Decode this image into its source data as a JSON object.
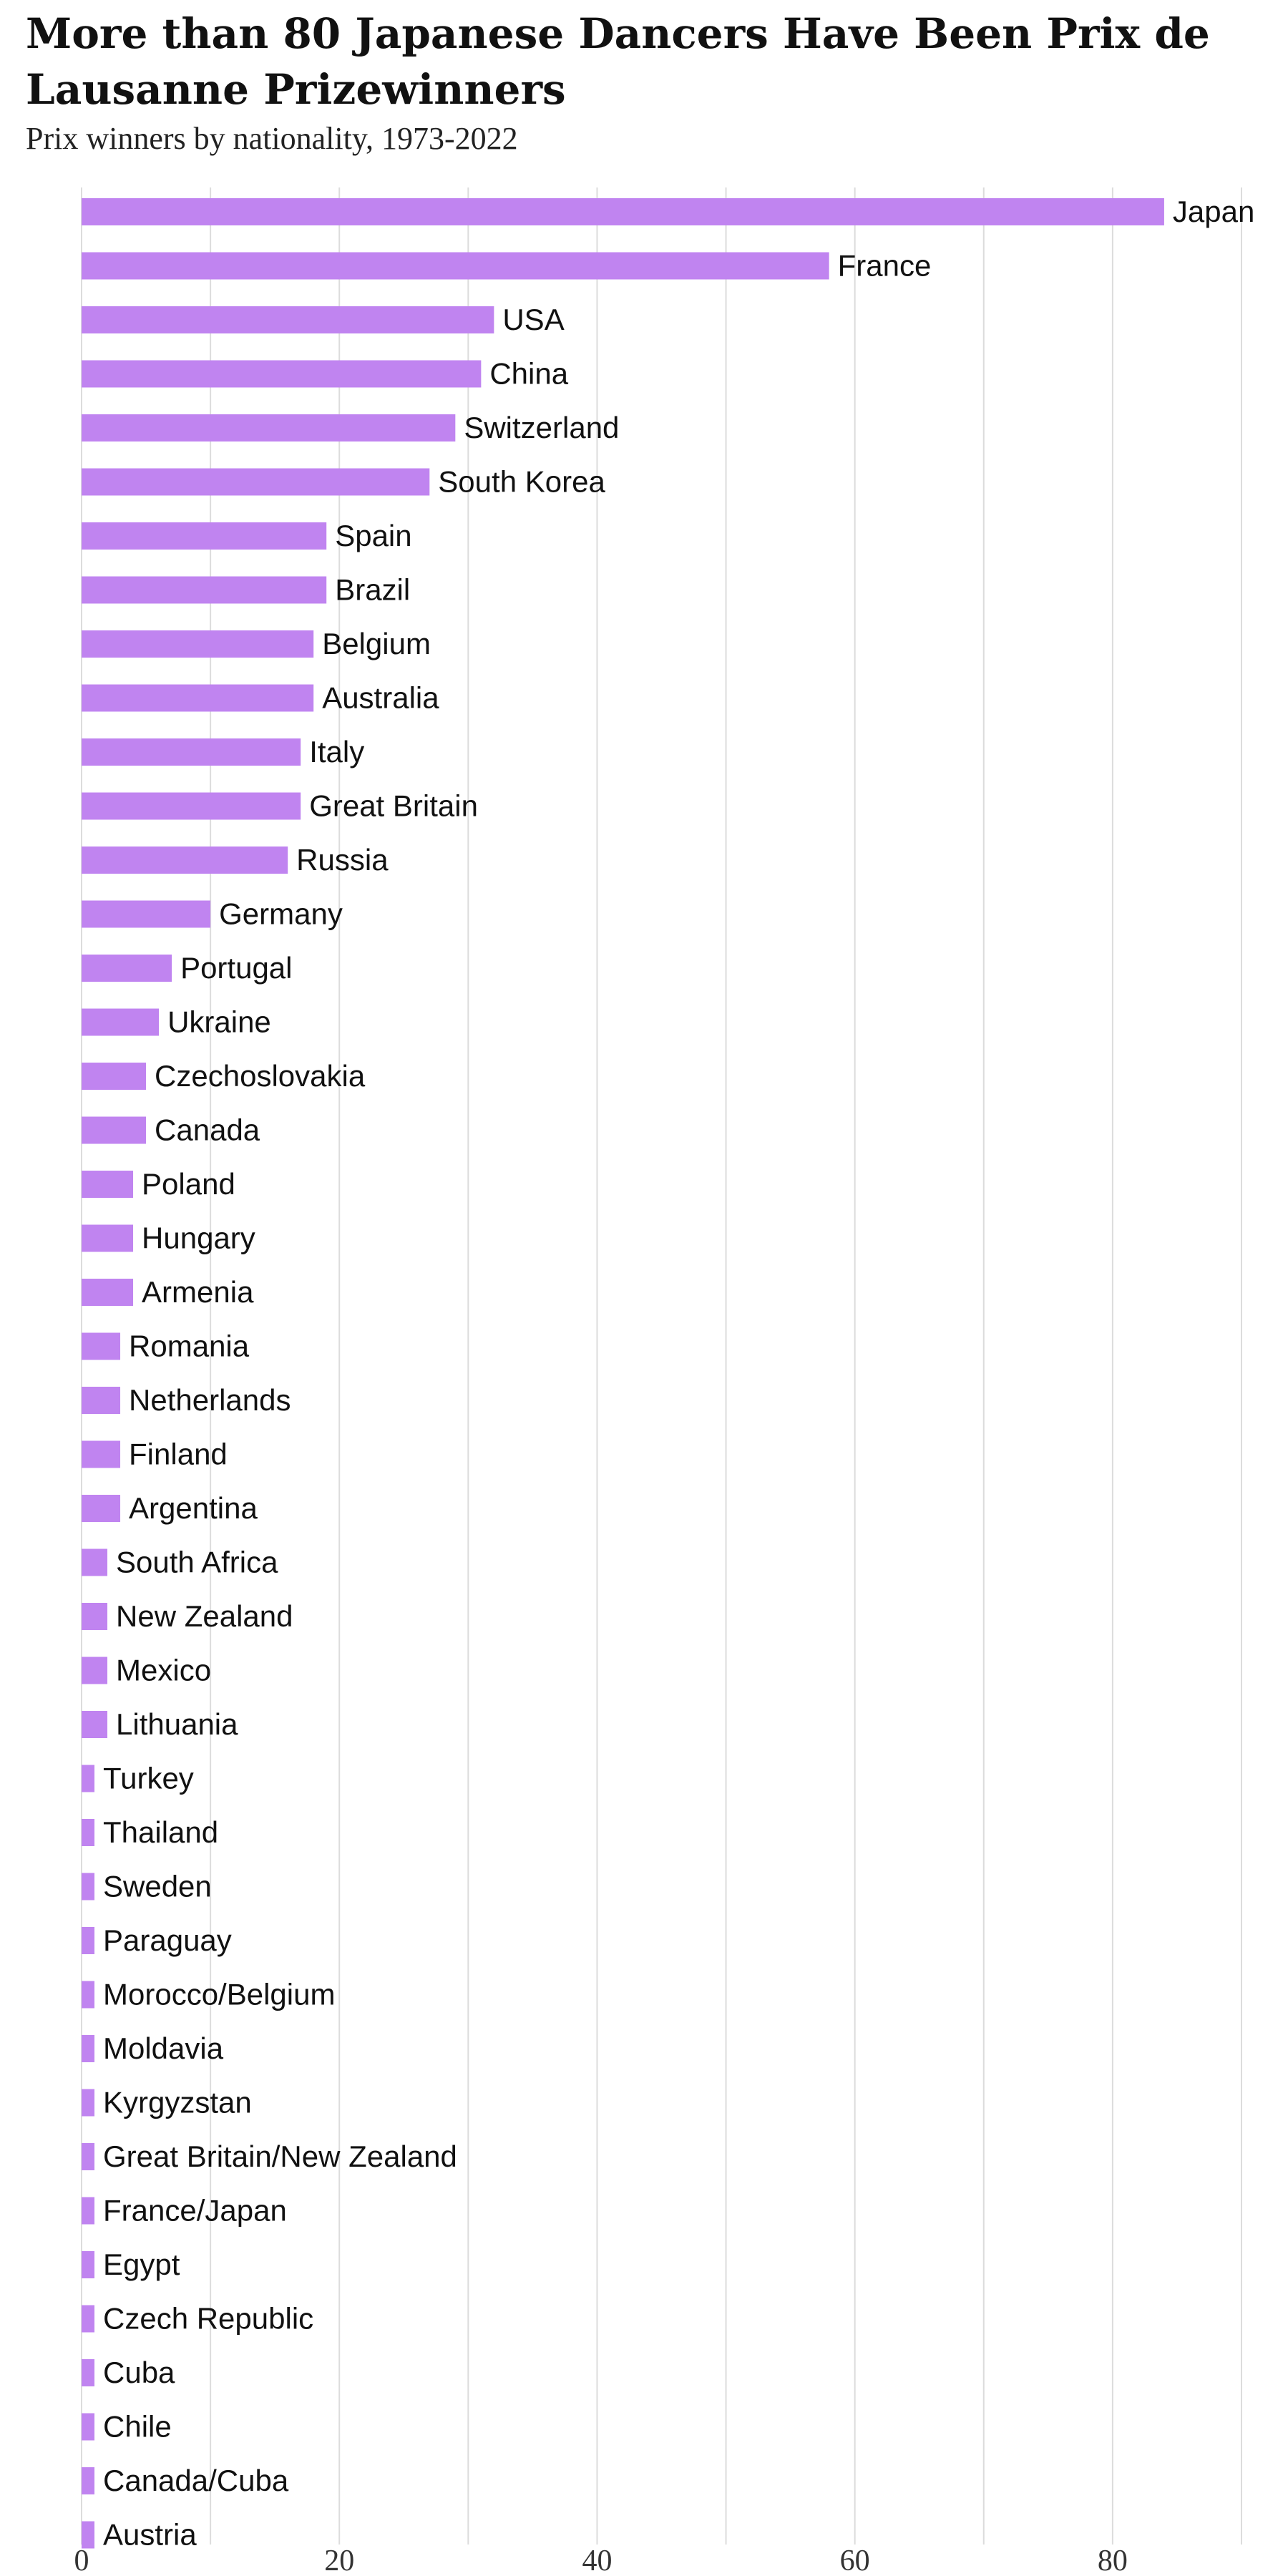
{
  "header": {
    "title": "More than 80 Japanese Dancers Have Been Prix de Lausanne Prizewinners",
    "subtitle": "Prix winners by nationality, 1973-2022"
  },
  "colors": {
    "bar": "#c084f0",
    "grid": "#dcdcdc",
    "text": "#111111"
  },
  "chart_data": {
    "type": "bar",
    "orientation": "horizontal",
    "title": "More than 80 Japanese Dancers Have Been Prix de Lausanne Prizewinners",
    "subtitle": "Prix winners by nationality, 1973-2022",
    "xlabel": "",
    "ylabel": "",
    "xlim": [
      0,
      90
    ],
    "xticks": [
      0,
      20,
      40,
      60,
      80
    ],
    "grid": true,
    "categories": [
      "Japan",
      "France",
      "USA",
      "China",
      "Switzerland",
      "South Korea",
      "Spain",
      "Brazil",
      "Belgium",
      "Australia",
      "Italy",
      "Great Britain",
      "Russia",
      "Germany",
      "Portugal",
      "Ukraine",
      "Czechoslovakia",
      "Canada",
      "Poland",
      "Hungary",
      "Armenia",
      "Romania",
      "Netherlands",
      "Finland",
      "Argentina",
      "South Africa",
      "New Zealand",
      "Mexico",
      "Lithuania",
      "Turkey",
      "Thailand",
      "Sweden",
      "Paraguay",
      "Morocco/Belgium",
      "Moldavia",
      "Kyrgyzstan",
      "Great Britain/New Zealand",
      "France/Japan",
      "Egypt",
      "Czech Republic",
      "Cuba",
      "Chile",
      "Canada/Cuba",
      "Austria"
    ],
    "values": [
      84,
      58,
      32,
      31,
      29,
      27,
      19,
      19,
      18,
      18,
      17,
      17,
      16,
      10,
      7,
      6,
      5,
      5,
      4,
      4,
      4,
      3,
      3,
      3,
      3,
      2,
      2,
      2,
      2,
      1,
      1,
      1,
      1,
      1,
      1,
      1,
      1,
      1,
      1,
      1,
      1,
      1,
      1,
      1
    ]
  }
}
